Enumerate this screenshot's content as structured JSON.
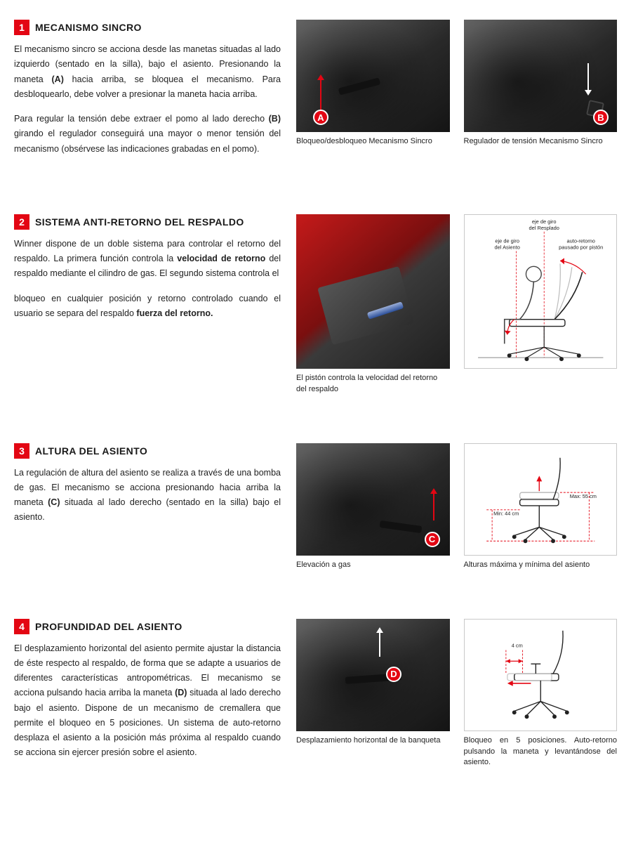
{
  "colors": {
    "accent": "#e30613",
    "text": "#1a1a1a",
    "border": "#c8c8c8",
    "bg": "#ffffff"
  },
  "sections": [
    {
      "num": "1",
      "title": "MECANISMO SINCRO",
      "body_html": "El mecanismo sincro se acciona desde las manetas situadas al lado izquierdo (sentado en la silla), bajo el asiento. Presionando la maneta <strong>(A)</strong> hacia arriba, se bloquea el mecanismo. Para desbloquearlo, debe volver a presionar la maneta hacia arriba.|Para regular la tensión debe extraer el pomo al lado derecho <strong>(B)</strong> girando el regulador conseguirá una mayor o menor tensión del mecanismo (obsérvese las indicaciones grabadas en el pomo).",
      "figs": [
        {
          "caption": "Bloqueo/desbloqueo Mecanismo Sincro",
          "badge": "A"
        },
        {
          "caption": "Regulador de tensión Mecanismo Sincro",
          "badge": "B"
        }
      ]
    },
    {
      "num": "2",
      "title": "SISTEMA ANTI-RETORNO DEL RESPALDO",
      "body_html": "Winner dispone de un doble sistema para controlar el retorno del respaldo. La primera función controla la <strong>velocidad de retorno</strong> del respaldo mediante el cilindro de gas. El segundo sistema controla el|bloqueo en cualquier posición y retorno controlado cuando el usuario se separa del respaldo <strong>fuerza del retorno.</strong>",
      "figs": [
        {
          "caption": "El pistón controla la velocidad del retorno del respaldo"
        },
        {
          "diagram": true,
          "labels": {
            "eje_resplado": "eje de giro\ndel Resplado",
            "eje_asiento": "eje de giro\ndel Asiento",
            "auto_retorno": "auto-retorno\npausado por pistón"
          }
        }
      ]
    },
    {
      "num": "3",
      "title": "ALTURA DEL ASIENTO",
      "body_html": "La regulación de altura del asiento se realiza a través de una bomba de gas. El mecanismo se acciona presionando hacia arriba la maneta <strong>(C)</strong> situada al lado derecho (sentado en la silla) bajo el asiento.",
      "figs": [
        {
          "caption": "Elevación a gas",
          "badge": "C"
        },
        {
          "diagram": true,
          "caption": "Alturas máxima y mínima del asiento",
          "labels": {
            "min": "Min: 44 cm",
            "max": "Max: 55 cm"
          }
        }
      ]
    },
    {
      "num": "4",
      "title": "PROFUNDIDAD DEL ASIENTO",
      "body_html": "El desplazamiento horizontal del asiento permite ajustar la distancia de éste respecto al respaldo, de forma que se adapte a usuarios de diferentes características antropométricas. El mecanismo se acciona pulsando hacia arriba la maneta <strong>(D)</strong> situada al lado derecho bajo el asiento. Dispone de un mecanismo de cremallera que permite el bloqueo en 5 posiciones. Un sistema de auto-retorno desplaza el asiento a la posición más próxima al respaldo cuando se acciona sin ejercer presión sobre el asiento.",
      "figs": [
        {
          "caption": "Desplazamiento horizontal de la banqueta",
          "badge": "D"
        },
        {
          "diagram": true,
          "caption": "Bloqueo en 5 posiciones. Auto-retorno pulsando la maneta y levantándose del asiento.",
          "labels": {
            "depth": "4 cm"
          }
        }
      ]
    }
  ]
}
